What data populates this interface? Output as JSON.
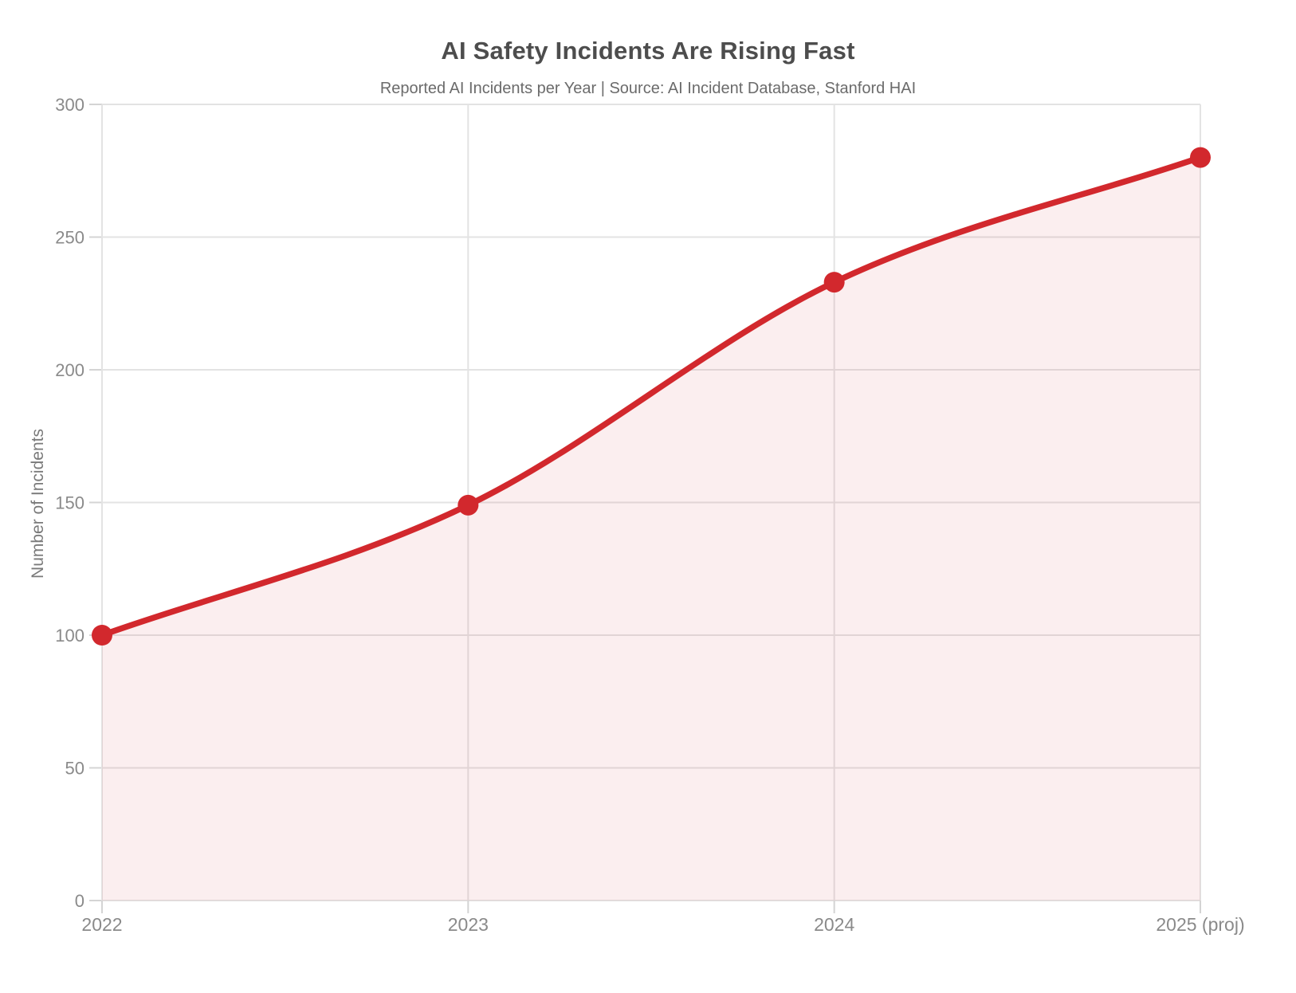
{
  "chart": {
    "title": "AI Safety Incidents Are Rising Fast",
    "subtitle": "Reported AI Incidents per Year | Source: AI Incident Database, Stanford HAI",
    "ylabel": "Number of Incidents"
  },
  "chart_data": {
    "type": "area",
    "title": "AI Safety Incidents Are Rising Fast",
    "subtitle": "Reported AI Incidents per Year | Source: AI Incident Database, Stanford HAI",
    "categories": [
      "2022",
      "2023",
      "2024",
      "2025 (proj)"
    ],
    "series": [
      {
        "name": "Reported AI Incidents per Year",
        "values": [
          100,
          149,
          233,
          280
        ]
      }
    ],
    "xlabel": "",
    "ylabel": "Number of Incidents",
    "ylim": [
      0,
      300
    ],
    "yticks": [
      0,
      50,
      100,
      150,
      200,
      250,
      300
    ],
    "grid": true,
    "legend": "none",
    "smooth": true,
    "marker": "circle",
    "style": {
      "line_color": "#d2282d",
      "marker_color": "#d2282d",
      "fill_color": "rgba(210,40,45,0.08)",
      "grid_color": "#e3e3e3",
      "tick_color": "#d4d4d4",
      "tick_label_color": "#8a8a8a",
      "title_color": "#4d4d4d",
      "subtitle_color": "#6b6b6b",
      "axis_label_color": "#7a7a7a"
    }
  }
}
